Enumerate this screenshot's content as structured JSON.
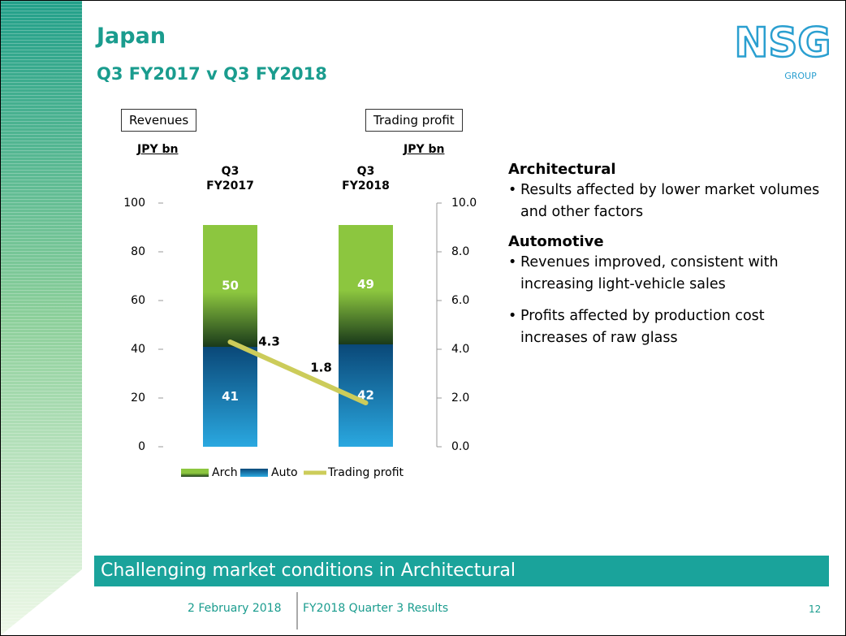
{
  "header": {
    "title": "Japan",
    "subtitle": "Q3 FY2017 v Q3 FY2018"
  },
  "logo": {
    "name": "NSG",
    "group": "GROUP"
  },
  "chart_data": {
    "type": "bar",
    "stacked": true,
    "left_box": "Revenues",
    "right_box": "Trading profit",
    "ylabel": "JPY bn",
    "y2label": "JPY bn",
    "categories": [
      "Q3 FY2017",
      "Q3 FY2018"
    ],
    "series": [
      {
        "name": "Arch",
        "color": "#8cc63f",
        "values": [
          50,
          49
        ]
      },
      {
        "name": "Auto",
        "color": "#1b6fb0",
        "values": [
          41,
          42
        ]
      },
      {
        "name": "Trading profit",
        "color": "#cccc5a",
        "type": "line",
        "axis": "y2",
        "values": [
          4.3,
          1.8
        ]
      }
    ],
    "stack_order": [
      1,
      0
    ],
    "ylim": [
      0,
      100
    ],
    "yticks": [
      0,
      20,
      40,
      60,
      80,
      100
    ],
    "y2lim": [
      0,
      10
    ],
    "y2ticks": [
      {
        "value": 0,
        "label": "0.0"
      },
      {
        "value": 2,
        "label": "2.0"
      },
      {
        "value": 4,
        "label": "4.0"
      },
      {
        "value": 6,
        "label": "6.0"
      },
      {
        "value": 8,
        "label": "8.0"
      },
      {
        "value": 10,
        "label": "10.0"
      }
    ],
    "legend": "bottom",
    "grid": false
  },
  "commentary": [
    {
      "heading": "Architectural",
      "bullets": [
        "Results affected by lower market volumes and other factors"
      ]
    },
    {
      "heading": "Automotive",
      "bullets": [
        "Revenues improved, consistent with increasing light-vehicle sales",
        "Profits affected by production cost increases of raw glass"
      ]
    }
  ],
  "banner": "Challenging market conditions in Architectural",
  "footer": {
    "date": "2 February 2018",
    "event": "FY2018 Quarter 3 Results",
    "page": "12"
  }
}
